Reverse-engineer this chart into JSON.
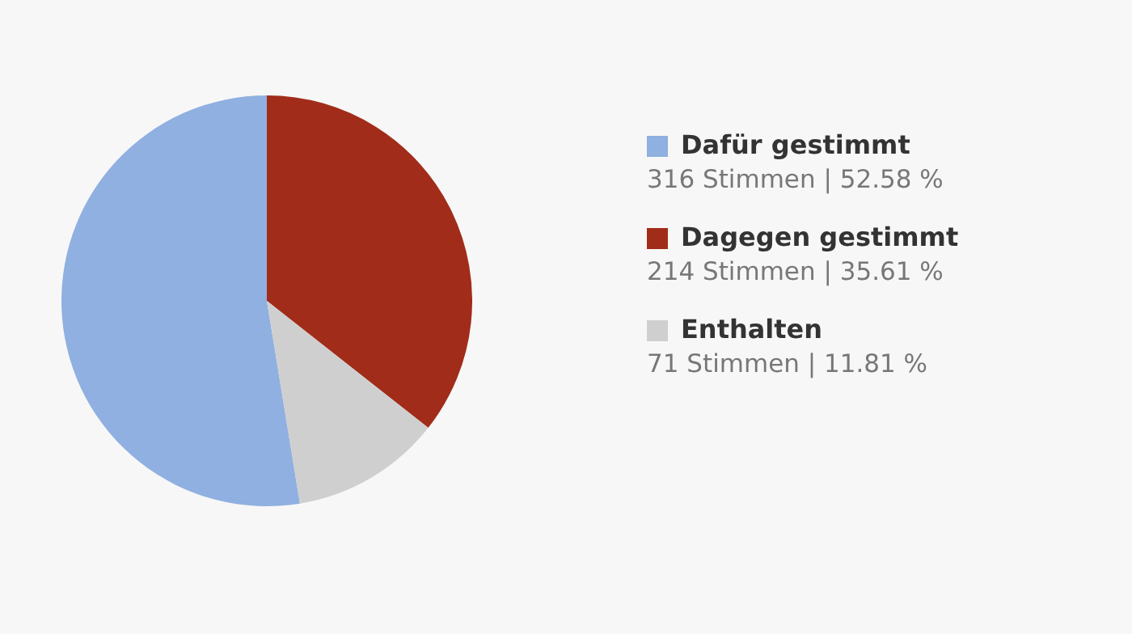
{
  "chart_data": {
    "type": "pie",
    "categories": [
      "Dafür gestimmt",
      "Dagegen gestimmt",
      "Enthalten"
    ],
    "values": [
      316,
      214,
      71
    ],
    "colors": [
      "#8fb0e0",
      "#a12c1a",
      "#cfcfcf"
    ],
    "value_labels": [
      "316 Stimmen | 52.58 %",
      "214 Stimmen | 35.61 %",
      "71 Stimmen | 11.81 %"
    ],
    "legend": "right"
  }
}
